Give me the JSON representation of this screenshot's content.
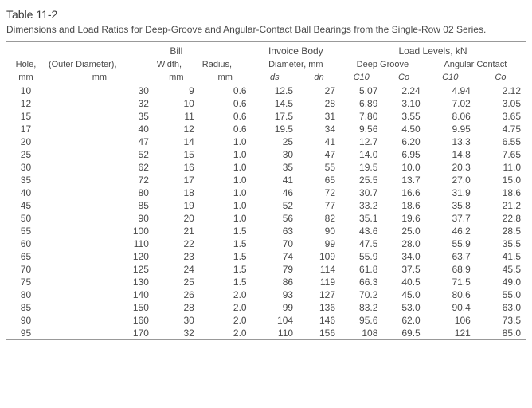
{
  "title": "Table 11-2",
  "subtitle": "Dimensions and Load Ratios for Deep-Groove and Angular-Contact Ball Bearings from the Single-Row 02 Series.",
  "group_headers": {
    "bill": "Bill",
    "invoice_body": "Invoice Body",
    "load_levels": "Load Levels, kN",
    "deep_groove": "Deep Groove",
    "angular_contact": "Angular Contact"
  },
  "mid_headers": {
    "hole": "Hole,",
    "od": "(Outer Diameter),",
    "width": "Width,",
    "radius": "Radius,",
    "diameter": "Diameter, mm"
  },
  "col_units": {
    "mm": "mm",
    "ds": "ds",
    "dn": "dn",
    "c10": "C10",
    "co": "Co",
    "c10a": "C10",
    "coa": "Co"
  },
  "columns": [
    "hole",
    "od",
    "width",
    "radius",
    "ds",
    "dn",
    "c10_dg",
    "co_dg",
    "c10_ac",
    "co_ac"
  ],
  "rows": [
    [
      10,
      30,
      9,
      "0.6",
      "12.5",
      27,
      "5.07",
      "2.24",
      "4.94",
      "2.12"
    ],
    [
      12,
      32,
      10,
      "0.6",
      "14.5",
      28,
      "6.89",
      "3.10",
      "7.02",
      "3.05"
    ],
    [
      15,
      35,
      11,
      "0.6",
      "17.5",
      31,
      "7.80",
      "3.55",
      "8.06",
      "3.65"
    ],
    [
      17,
      40,
      12,
      "0.6",
      "19.5",
      34,
      "9.56",
      "4.50",
      "9.95",
      "4.75"
    ],
    [
      20,
      47,
      14,
      "1.0",
      "25",
      41,
      "12.7",
      "6.20",
      "13.3",
      "6.55"
    ],
    [
      25,
      52,
      15,
      "1.0",
      "30",
      47,
      "14.0",
      "6.95",
      "14.8",
      "7.65"
    ],
    [
      30,
      62,
      16,
      "1.0",
      "35",
      55,
      "19.5",
      "10.0",
      "20.3",
      "11.0"
    ],
    [
      35,
      72,
      17,
      "1.0",
      "41",
      65,
      "25.5",
      "13.7",
      "27.0",
      "15.0"
    ],
    [
      40,
      80,
      18,
      "1.0",
      "46",
      72,
      "30.7",
      "16.6",
      "31.9",
      "18.6"
    ],
    [
      45,
      85,
      19,
      "1.0",
      "52",
      77,
      "33.2",
      "18.6",
      "35.8",
      "21.2"
    ],
    [
      50,
      90,
      20,
      "1.0",
      "56",
      82,
      "35.1",
      "19.6",
      "37.7",
      "22.8"
    ],
    [
      55,
      100,
      21,
      "1.5",
      "63",
      90,
      "43.6",
      "25.0",
      "46.2",
      "28.5"
    ],
    [
      60,
      110,
      22,
      "1.5",
      "70",
      99,
      "47.5",
      "28.0",
      "55.9",
      "35.5"
    ],
    [
      65,
      120,
      23,
      "1.5",
      "74",
      109,
      "55.9",
      "34.0",
      "63.7",
      "41.5"
    ],
    [
      70,
      125,
      24,
      "1.5",
      "79",
      114,
      "61.8",
      "37.5",
      "68.9",
      "45.5"
    ],
    [
      75,
      130,
      25,
      "1.5",
      "86",
      119,
      "66.3",
      "40.5",
      "71.5",
      "49.0"
    ],
    [
      80,
      140,
      26,
      "2.0",
      "93",
      127,
      "70.2",
      "45.0",
      "80.6",
      "55.0"
    ],
    [
      85,
      150,
      28,
      "2.0",
      "99",
      136,
      "83.2",
      "53.0",
      "90.4",
      "63.0"
    ],
    [
      90,
      160,
      30,
      "2.0",
      "104",
      146,
      "95.6",
      "62.0",
      "106",
      "73.5"
    ],
    [
      95,
      170,
      32,
      "2.0",
      "110",
      156,
      "108",
      "69.5",
      "121",
      "85.0"
    ]
  ],
  "style": {
    "bg": "#ffffff",
    "text": "#4a4a4a",
    "rule": "#999999",
    "font_size_body": 12,
    "font_size_title": 14
  }
}
